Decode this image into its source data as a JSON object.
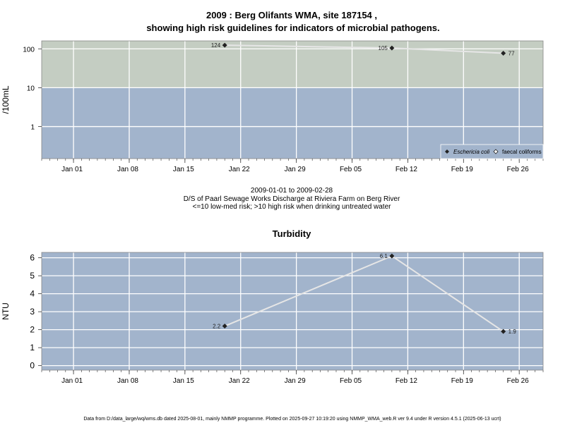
{
  "figure": {
    "title_line1": "2009 : Berg Olifants WMA, site 187154 ,",
    "title_line2": "showing high risk guidelines for indicators of microbial pathogens.",
    "caption_line1": "2009-01-01 to 2009-02-28",
    "caption_line2": "D/S of Paarl Sewage Works Discharge at Riviera Farm on Berg River",
    "caption_line3": "<=10 low-med risk; >10 high risk when drinking untreated water",
    "footer": "Data from D:/data_large/wq/wms.db dated 2025-08-01, mainly NMMP programme. Plotted on 2025-09-27 10:19:20 using NMMP_WMA_web.R ver 9.4 under R version 4.5.1 (2025-06-13 ucrt)"
  },
  "colors": {
    "high_risk_band": "#c4cdc2",
    "low_risk_band": "#a2b4cc",
    "gridline": "#ffffff",
    "series_line": "#e6e6e6",
    "marker": "#222222"
  },
  "chart_data": [
    {
      "type": "line",
      "title": "",
      "xlabel": "",
      "ylabel": "/100mL",
      "y_scale": "log",
      "x_range": [
        "2008-12-28",
        "2009-03-01"
      ],
      "ylim": [
        0.15,
        160
      ],
      "yticks": [
        1,
        10,
        100
      ],
      "ytick_labels": [
        "1",
        "10",
        "100"
      ],
      "xticks": [
        "2009-01-01",
        "2009-01-08",
        "2009-01-15",
        "2009-01-22",
        "2009-01-29",
        "2009-02-05",
        "2009-02-12",
        "2009-02-19",
        "2009-02-26"
      ],
      "xtick_labels": [
        "Jan 01",
        "Jan 08",
        "Jan 15",
        "Jan 22",
        "Jan 29",
        "Feb 05",
        "Feb 12",
        "Feb 19",
        "Feb 26"
      ],
      "grid": true,
      "threshold": 10,
      "legend_position": "bottom-right",
      "legend": [
        {
          "label": "Eschericia coli",
          "marker": "filled-diamond"
        },
        {
          "label": "faecal coliforms",
          "marker": "open-diamond"
        }
      ],
      "series": [
        {
          "name": "Eschericia coli",
          "x": [
            "2009-01-20",
            "2009-02-10",
            "2009-02-24"
          ],
          "values": [
            124,
            105,
            77
          ],
          "labels": [
            "124",
            "105",
            "77"
          ],
          "label_sides": [
            "left",
            "left",
            "right"
          ]
        }
      ]
    },
    {
      "type": "line",
      "title": "Turbidity",
      "xlabel": "",
      "ylabel": "NTU",
      "y_scale": "linear",
      "x_range": [
        "2008-12-28",
        "2009-03-01"
      ],
      "ylim": [
        -0.25,
        6.3
      ],
      "yticks": [
        0,
        1,
        2,
        3,
        4,
        5,
        6
      ],
      "ytick_labels": [
        "0",
        "1",
        "2",
        "3",
        "4",
        "5",
        "6"
      ],
      "xticks": [
        "2009-01-01",
        "2009-01-08",
        "2009-01-15",
        "2009-01-22",
        "2009-01-29",
        "2009-02-05",
        "2009-02-12",
        "2009-02-19",
        "2009-02-26"
      ],
      "xtick_labels": [
        "Jan 01",
        "Jan 08",
        "Jan 15",
        "Jan 22",
        "Jan 29",
        "Feb 05",
        "Feb 12",
        "Feb 19",
        "Feb 26"
      ],
      "grid": true,
      "series": [
        {
          "name": "",
          "x": [
            "2009-01-20",
            "2009-02-10",
            "2009-02-24"
          ],
          "values": [
            2.2,
            6.1,
            1.9
          ],
          "labels": [
            "2.2",
            "6.1",
            "1.9"
          ],
          "label_sides": [
            "left",
            "left",
            "right"
          ]
        }
      ]
    }
  ]
}
